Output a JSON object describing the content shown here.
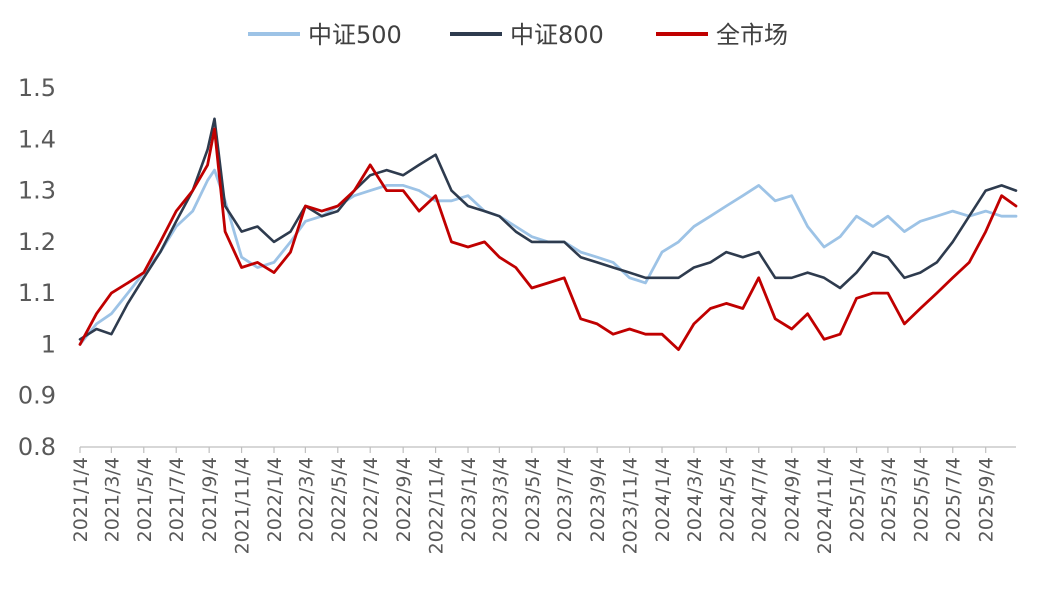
{
  "chart_data": {
    "type": "line",
    "title": "",
    "xlabel": "",
    "ylabel": "",
    "ylim": [
      0.8,
      1.5
    ],
    "y_ticks": [
      0.8,
      0.9,
      1,
      1.1,
      1.2,
      1.3,
      1.4,
      1.5
    ],
    "y_tick_labels": [
      "0.8",
      "0.9",
      "1",
      "1.1",
      "1.2",
      "1.3",
      "1.4",
      "1.5"
    ],
    "x_tick_labels": [
      "2021/1/4",
      "2021/3/4",
      "2021/5/4",
      "2021/7/4",
      "2021/9/4",
      "2021/11/4",
      "2022/1/4",
      "2022/3/4",
      "2022/5/4",
      "2022/7/4",
      "2022/9/4",
      "2022/11/4",
      "2023/1/4",
      "2023/3/4",
      "2023/5/4",
      "2023/7/4",
      "2023/9/4",
      "2023/11/4",
      "2024/1/4",
      "2024/3/4",
      "2024/5/4",
      "2024/7/4",
      "2024/9/4",
      "2024/11/4",
      "2025/1/4",
      "2025/3/4",
      "2025/5/4",
      "2025/7/4",
      "2025/9/4"
    ],
    "x_end": "2025/10/31",
    "grid": false,
    "legend_position": "top-center",
    "series": [
      {
        "name": "中证500",
        "color": "#9dc3e6",
        "x": [
          "2021/1/4",
          "2021/2/4",
          "2021/3/4",
          "2021/4/4",
          "2021/5/4",
          "2021/6/4",
          "2021/7/4",
          "2021/8/4",
          "2021/9/1",
          "2021/9/14",
          "2021/10/4",
          "2021/11/4",
          "2021/12/4",
          "2022/1/4",
          "2022/2/4",
          "2022/3/4",
          "2022/4/4",
          "2022/5/4",
          "2022/6/4",
          "2022/7/4",
          "2022/8/4",
          "2022/9/4",
          "2022/10/4",
          "2022/11/4",
          "2022/12/4",
          "2023/1/4",
          "2023/2/4",
          "2023/3/4",
          "2023/4/4",
          "2023/5/4",
          "2023/6/4",
          "2023/7/4",
          "2023/8/4",
          "2023/9/4",
          "2023/10/4",
          "2023/11/4",
          "2023/12/4",
          "2024/1/4",
          "2024/2/4",
          "2024/3/4",
          "2024/4/4",
          "2024/5/4",
          "2024/6/4",
          "2024/7/4",
          "2024/8/4",
          "2024/9/4",
          "2024/10/4",
          "2024/11/4",
          "2024/12/4",
          "2025/1/4",
          "2025/2/4",
          "2025/3/4",
          "2025/4/4",
          "2025/5/4",
          "2025/6/4",
          "2025/7/4",
          "2025/8/4",
          "2025/9/4",
          "2025/10/4",
          "2025/10/31"
        ],
        "y": [
          1.0,
          1.04,
          1.06,
          1.1,
          1.14,
          1.18,
          1.23,
          1.26,
          1.32,
          1.34,
          1.28,
          1.17,
          1.15,
          1.16,
          1.2,
          1.24,
          1.25,
          1.27,
          1.29,
          1.3,
          1.31,
          1.31,
          1.3,
          1.28,
          1.28,
          1.29,
          1.26,
          1.25,
          1.23,
          1.21,
          1.2,
          1.2,
          1.18,
          1.17,
          1.16,
          1.13,
          1.12,
          1.18,
          1.2,
          1.23,
          1.25,
          1.27,
          1.29,
          1.31,
          1.28,
          1.29,
          1.23,
          1.19,
          1.21,
          1.25,
          1.23,
          1.25,
          1.22,
          1.24,
          1.25,
          1.26,
          1.25,
          1.26,
          1.25,
          1.25
        ]
      },
      {
        "name": "中证800",
        "color": "#2e3b4e",
        "x": [
          "2021/1/4",
          "2021/2/4",
          "2021/3/4",
          "2021/4/4",
          "2021/5/4",
          "2021/6/4",
          "2021/7/4",
          "2021/8/4",
          "2021/9/1",
          "2021/9/14",
          "2021/10/4",
          "2021/11/4",
          "2021/12/4",
          "2022/1/4",
          "2022/2/4",
          "2022/3/4",
          "2022/4/4",
          "2022/5/4",
          "2022/6/4",
          "2022/7/4",
          "2022/8/4",
          "2022/9/4",
          "2022/10/4",
          "2022/11/4",
          "2022/12/4",
          "2023/1/4",
          "2023/2/4",
          "2023/3/4",
          "2023/4/4",
          "2023/5/4",
          "2023/6/4",
          "2023/7/4",
          "2023/8/4",
          "2023/9/4",
          "2023/10/4",
          "2023/11/4",
          "2023/12/4",
          "2024/1/4",
          "2024/2/4",
          "2024/3/4",
          "2024/4/4",
          "2024/5/4",
          "2024/6/4",
          "2024/7/4",
          "2024/8/4",
          "2024/9/4",
          "2024/10/4",
          "2024/11/4",
          "2024/12/4",
          "2025/1/4",
          "2025/2/4",
          "2025/3/4",
          "2025/4/4",
          "2025/5/4",
          "2025/6/4",
          "2025/7/4",
          "2025/8/4",
          "2025/9/4",
          "2025/10/4",
          "2025/10/31"
        ],
        "y": [
          1.01,
          1.03,
          1.02,
          1.08,
          1.13,
          1.18,
          1.24,
          1.3,
          1.38,
          1.44,
          1.27,
          1.22,
          1.23,
          1.2,
          1.22,
          1.27,
          1.25,
          1.26,
          1.3,
          1.33,
          1.34,
          1.33,
          1.35,
          1.37,
          1.3,
          1.27,
          1.26,
          1.25,
          1.22,
          1.2,
          1.2,
          1.2,
          1.17,
          1.16,
          1.15,
          1.14,
          1.13,
          1.13,
          1.13,
          1.15,
          1.16,
          1.18,
          1.17,
          1.18,
          1.13,
          1.13,
          1.14,
          1.13,
          1.11,
          1.14,
          1.18,
          1.17,
          1.13,
          1.14,
          1.16,
          1.2,
          1.25,
          1.3,
          1.31,
          1.3
        ]
      },
      {
        "name": "全市场",
        "color": "#c00000",
        "x": [
          "2021/1/4",
          "2021/2/4",
          "2021/3/4",
          "2021/4/4",
          "2021/5/4",
          "2021/6/4",
          "2021/7/4",
          "2021/8/4",
          "2021/9/1",
          "2021/9/14",
          "2021/10/4",
          "2021/11/4",
          "2021/12/4",
          "2022/1/4",
          "2022/2/4",
          "2022/3/4",
          "2022/4/4",
          "2022/5/4",
          "2022/6/4",
          "2022/7/4",
          "2022/8/4",
          "2022/9/4",
          "2022/10/4",
          "2022/11/4",
          "2022/12/4",
          "2023/1/4",
          "2023/2/4",
          "2023/3/4",
          "2023/4/4",
          "2023/5/4",
          "2023/6/4",
          "2023/7/4",
          "2023/8/4",
          "2023/9/4",
          "2023/10/4",
          "2023/11/4",
          "2023/12/4",
          "2024/1/4",
          "2024/2/4",
          "2024/3/4",
          "2024/4/4",
          "2024/5/4",
          "2024/6/4",
          "2024/7/4",
          "2024/8/4",
          "2024/9/4",
          "2024/10/4",
          "2024/11/4",
          "2024/12/4",
          "2025/1/4",
          "2025/2/4",
          "2025/3/4",
          "2025/4/4",
          "2025/5/4",
          "2025/6/4",
          "2025/7/4",
          "2025/8/4",
          "2025/9/4",
          "2025/10/4",
          "2025/10/31"
        ],
        "y": [
          1.0,
          1.06,
          1.1,
          1.12,
          1.14,
          1.2,
          1.26,
          1.3,
          1.35,
          1.42,
          1.22,
          1.15,
          1.16,
          1.14,
          1.18,
          1.27,
          1.26,
          1.27,
          1.3,
          1.35,
          1.3,
          1.3,
          1.26,
          1.29,
          1.2,
          1.19,
          1.2,
          1.17,
          1.15,
          1.11,
          1.12,
          1.13,
          1.05,
          1.04,
          1.02,
          1.03,
          1.02,
          1.02,
          0.99,
          1.04,
          1.07,
          1.08,
          1.07,
          1.13,
          1.05,
          1.03,
          1.06,
          1.01,
          1.02,
          1.09,
          1.1,
          1.1,
          1.04,
          1.07,
          1.1,
          1.13,
          1.16,
          1.22,
          1.29,
          1.27
        ]
      }
    ]
  }
}
